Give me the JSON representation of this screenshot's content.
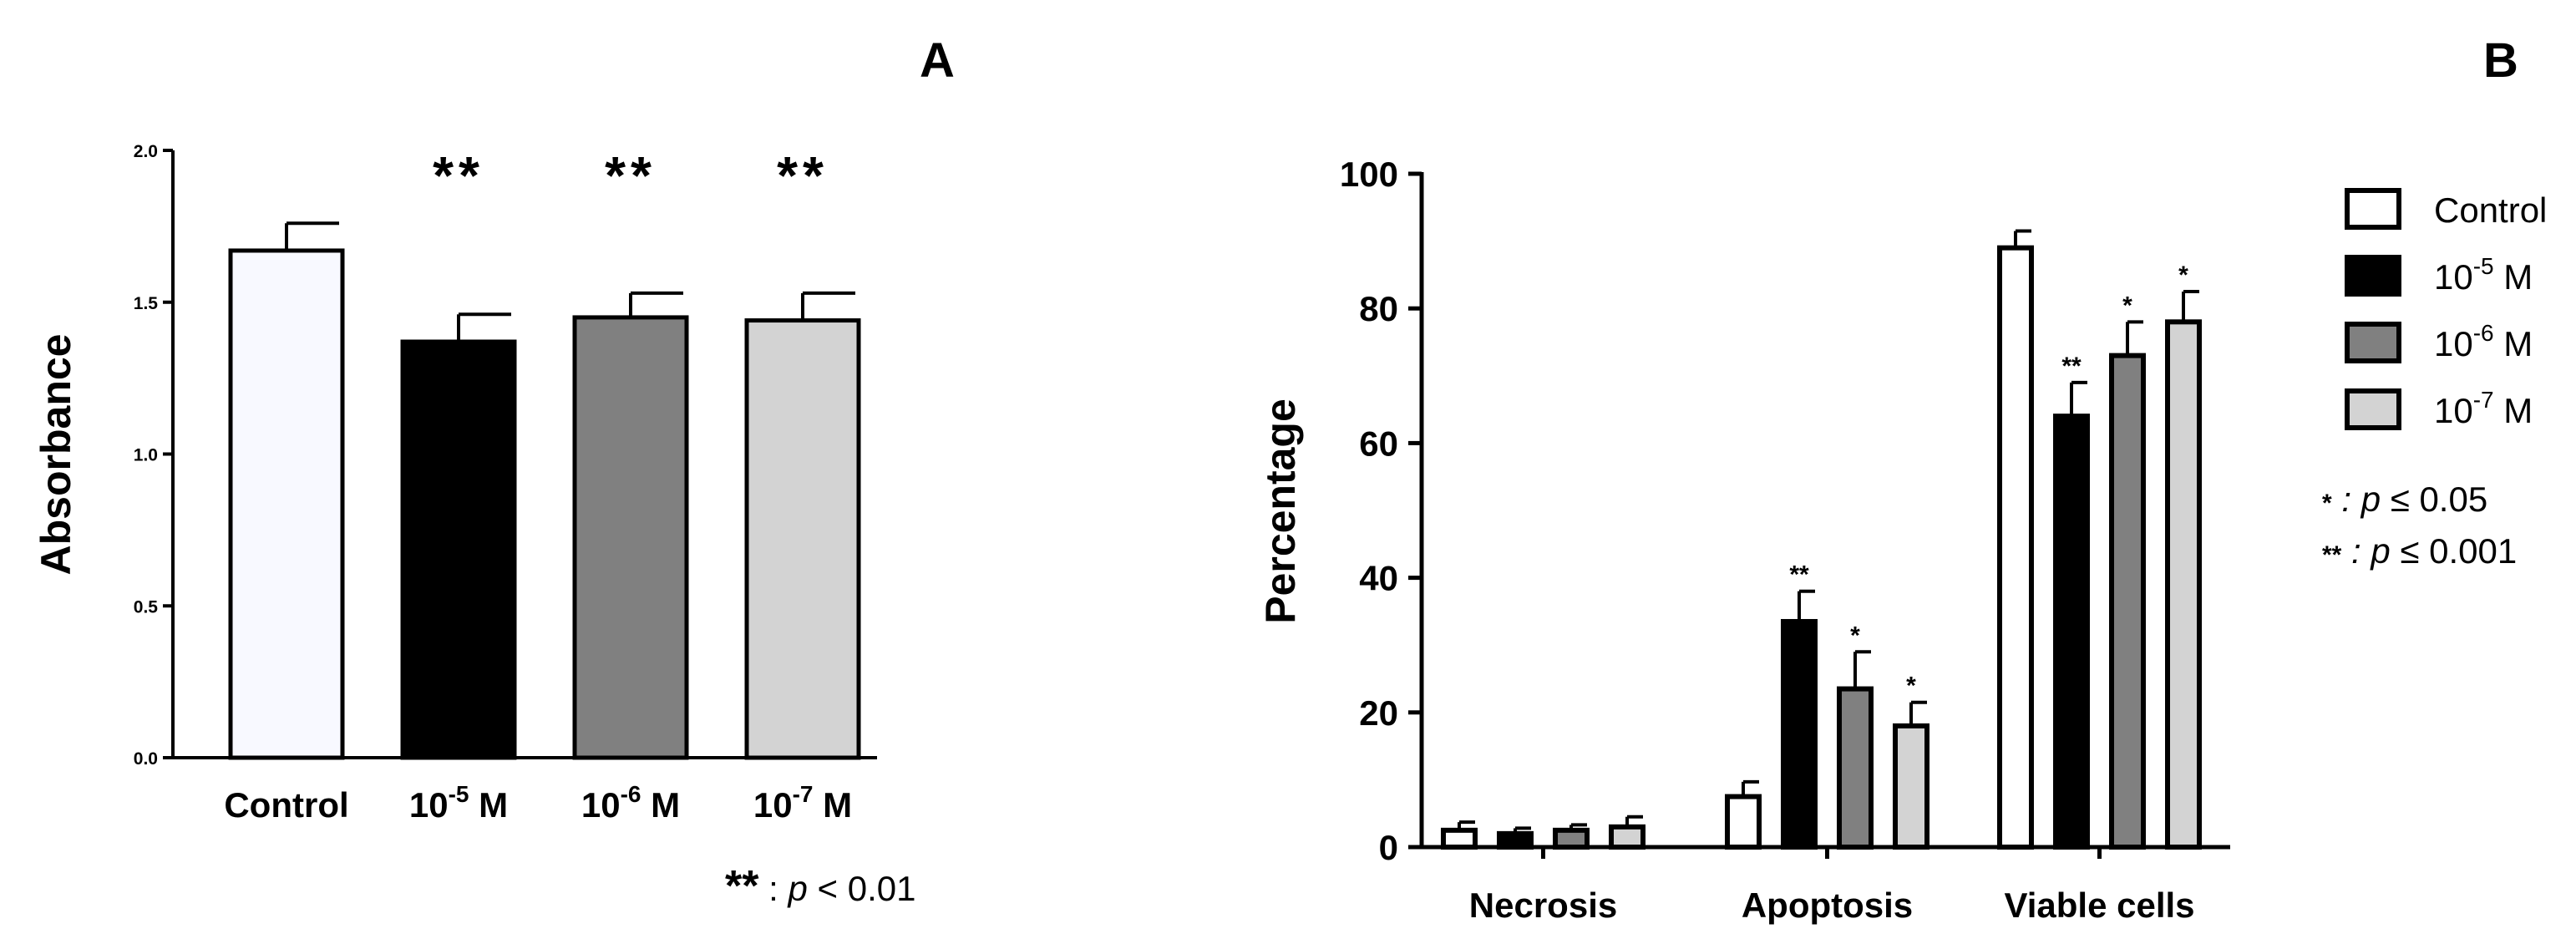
{
  "chart_data": [
    {
      "panel": "A",
      "type": "bar",
      "ylabel": "Absorbance",
      "xlabel": "",
      "ylim": [
        0,
        2.0
      ],
      "yticks": [
        "0.0",
        "0.5",
        "1.0",
        "1.5",
        "2.0"
      ],
      "categories": [
        {
          "base": "Control",
          "exp": "",
          "unit": ""
        },
        {
          "base": "10",
          "exp": "-5",
          "unit": " M"
        },
        {
          "base": "10",
          "exp": "-6",
          "unit": " M"
        },
        {
          "base": "10",
          "exp": "-7",
          "unit": " M"
        }
      ],
      "values": [
        1.67,
        1.37,
        1.45,
        1.44
      ],
      "errors": [
        0.09,
        0.09,
        0.08,
        0.09
      ],
      "colors": [
        "#f8f9ff",
        "#000000",
        "#808080",
        "#d3d3d3"
      ],
      "significance": [
        "",
        "**",
        "**",
        "**"
      ],
      "note": {
        "stars": "**",
        "sep": " : ",
        "p": "p",
        "rest": " < 0.01"
      }
    },
    {
      "panel": "B",
      "type": "bar",
      "ylabel": "Percentage",
      "xlabel": "",
      "ylim": [
        0,
        100
      ],
      "yticks": [
        "0",
        "20",
        "40",
        "60",
        "80",
        "100"
      ],
      "categories": [
        "Necrosis",
        "Apoptosis",
        "Viable cells"
      ],
      "series": [
        {
          "name": "Control",
          "exp": "",
          "color": "#ffffff",
          "values": [
            2.5,
            7.5,
            89
          ],
          "errors": [
            1.2,
            2.2,
            2.5
          ],
          "significance": [
            "",
            "",
            ""
          ]
        },
        {
          "name": "10",
          "exp": "-5",
          "unit": " M",
          "color": "#000000",
          "values": [
            2.0,
            33.5,
            64
          ],
          "errors": [
            0.8,
            4.5,
            5.0
          ],
          "significance": [
            "",
            "**",
            "**"
          ]
        },
        {
          "name": "10",
          "exp": "-6",
          "unit": " M",
          "color": "#808080",
          "values": [
            2.5,
            23.5,
            73
          ],
          "errors": [
            0.8,
            5.5,
            5.0
          ],
          "significance": [
            "",
            "*",
            "*"
          ]
        },
        {
          "name": "10",
          "exp": "-7",
          "unit": " M",
          "color": "#d3d3d3",
          "values": [
            3.0,
            18,
            78
          ],
          "errors": [
            1.5,
            3.5,
            4.5
          ],
          "significance": [
            "",
            "*",
            "*"
          ]
        }
      ],
      "notes": [
        {
          "stars": "*",
          "sep": " : ",
          "p": "p",
          "rest": " ≤ 0.05"
        },
        {
          "stars": "**",
          "sep": " : ",
          "p": "p",
          "rest": " ≤ 0.001"
        }
      ]
    }
  ]
}
